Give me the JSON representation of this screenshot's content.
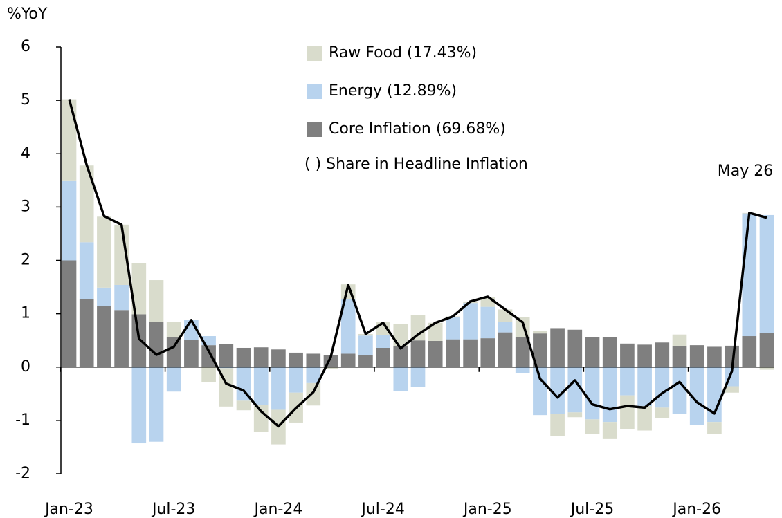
{
  "chart_data": {
    "type": "bar",
    "y_axis_label": "%YoY",
    "annotation": "May 26",
    "legend_note": "( ) Share in Headline Inflation",
    "stacked": true,
    "categories": [
      "Jan-23",
      null,
      null,
      null,
      null,
      null,
      "Jul-23",
      null,
      null,
      null,
      null,
      null,
      "Jan-24",
      null,
      null,
      null,
      null,
      null,
      "Jul-24",
      null,
      null,
      null,
      null,
      null,
      "Jan-25",
      null,
      null,
      null,
      null,
      null,
      "Jul-25",
      null,
      null,
      null,
      null,
      null,
      "Jan-26",
      null,
      null,
      null,
      null
    ],
    "series": [
      {
        "name": "Core Inflation (69.68%)",
        "color": "#7f7f7f",
        "values": [
          2.0,
          1.27,
          1.14,
          1.07,
          0.99,
          0.84,
          0.56,
          0.51,
          0.41,
          0.43,
          0.36,
          0.37,
          0.33,
          0.27,
          0.25,
          0.23,
          0.25,
          0.23,
          0.36,
          0.39,
          0.5,
          0.49,
          0.52,
          0.52,
          0.54,
          0.65,
          0.56,
          0.63,
          0.73,
          0.7,
          0.56,
          0.56,
          0.44,
          0.42,
          0.46,
          0.4,
          0.41,
          0.38,
          0.4,
          0.58,
          0.64
        ]
      },
      {
        "name": "Energy (12.89%)",
        "color": "#b8d3ee",
        "values": [
          1.5,
          1.07,
          0.35,
          0.47,
          -1.43,
          -1.4,
          -0.46,
          0.37,
          0.17,
          -0.02,
          -0.63,
          -0.71,
          -0.8,
          -0.48,
          -0.3,
          0.0,
          1.02,
          0.36,
          0.24,
          -0.45,
          -0.37,
          0.0,
          0.41,
          0.68,
          0.59,
          0.19,
          -0.11,
          -0.9,
          -0.88,
          -0.85,
          -0.98,
          -1.03,
          -0.53,
          -0.73,
          -0.76,
          -0.88,
          -1.08,
          -1.03,
          -0.36,
          2.3,
          2.21
        ]
      },
      {
        "name": "Raw Food (17.43%)",
        "color": "#d9dccc",
        "values": [
          1.52,
          1.44,
          1.33,
          1.13,
          0.96,
          0.79,
          0.28,
          0.0,
          -0.28,
          -0.72,
          -0.18,
          -0.5,
          -0.65,
          -0.56,
          -0.42,
          -0.04,
          0.28,
          0.03,
          0.25,
          0.42,
          0.47,
          0.34,
          0.02,
          0.03,
          0.18,
          0.24,
          0.38,
          0.05,
          -0.41,
          -0.09,
          -0.27,
          -0.32,
          -0.64,
          -0.46,
          -0.19,
          0.21,
          0.0,
          -0.22,
          -0.12,
          0.01,
          -0.05
        ]
      },
      {
        "type": "line",
        "color": "#000000",
        "values": [
          5.02,
          3.79,
          2.83,
          2.67,
          0.53,
          0.23,
          0.38,
          0.88,
          0.3,
          -0.31,
          -0.44,
          -0.83,
          -1.11,
          -0.77,
          -0.47,
          0.19,
          1.54,
          0.62,
          0.83,
          0.35,
          0.61,
          0.83,
          0.95,
          1.23,
          1.32,
          1.08,
          0.84,
          -0.22,
          -0.57,
          -0.25,
          -0.7,
          -0.79,
          -0.73,
          -0.76,
          -0.49,
          -0.28,
          -0.66,
          -0.87,
          -0.08,
          2.89,
          2.8
        ]
      }
    ],
    "ylim": [
      -2,
      6
    ],
    "yticks": [
      -2,
      -1,
      0,
      1,
      2,
      3,
      4,
      5,
      6
    ]
  }
}
